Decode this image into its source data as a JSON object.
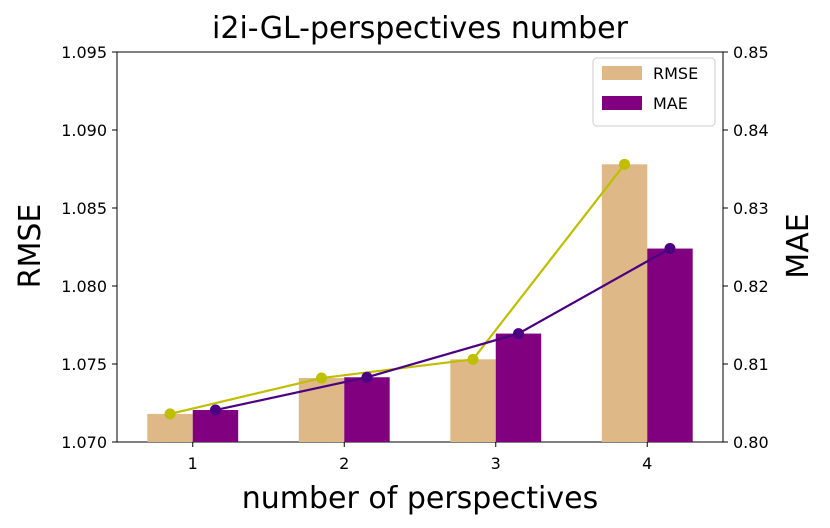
{
  "chart_data": {
    "type": "bar",
    "title": "i2i-GL-perspectives number",
    "xlabel": "number of perspectives",
    "ylabel_left": "RMSE",
    "ylabel_right": "MAE",
    "categories": [
      "1",
      "2",
      "3",
      "4"
    ],
    "left_axis": {
      "ylim": [
        1.07,
        1.095
      ],
      "ticks": [
        "1.070",
        "1.075",
        "1.080",
        "1.085",
        "1.090",
        "1.095"
      ]
    },
    "right_axis": {
      "ylim": [
        0.8,
        0.85
      ],
      "ticks": [
        "0.80",
        "0.81",
        "0.82",
        "0.83",
        "0.84",
        "0.85"
      ]
    },
    "series": [
      {
        "name": "RMSE",
        "axis": "left",
        "values": [
          1.0718,
          1.0741,
          1.0753,
          1.0878
        ],
        "bar_color": "#deb887",
        "line_color": "#bfbf00"
      },
      {
        "name": "MAE",
        "axis": "right",
        "values": [
          0.8041,
          0.8083,
          0.8139,
          0.8248
        ],
        "bar_color": "#800080",
        "line_color": "#4b0082"
      }
    ],
    "legend": {
      "position": "top-right",
      "entries": [
        "RMSE",
        "MAE"
      ]
    },
    "grid": false
  }
}
